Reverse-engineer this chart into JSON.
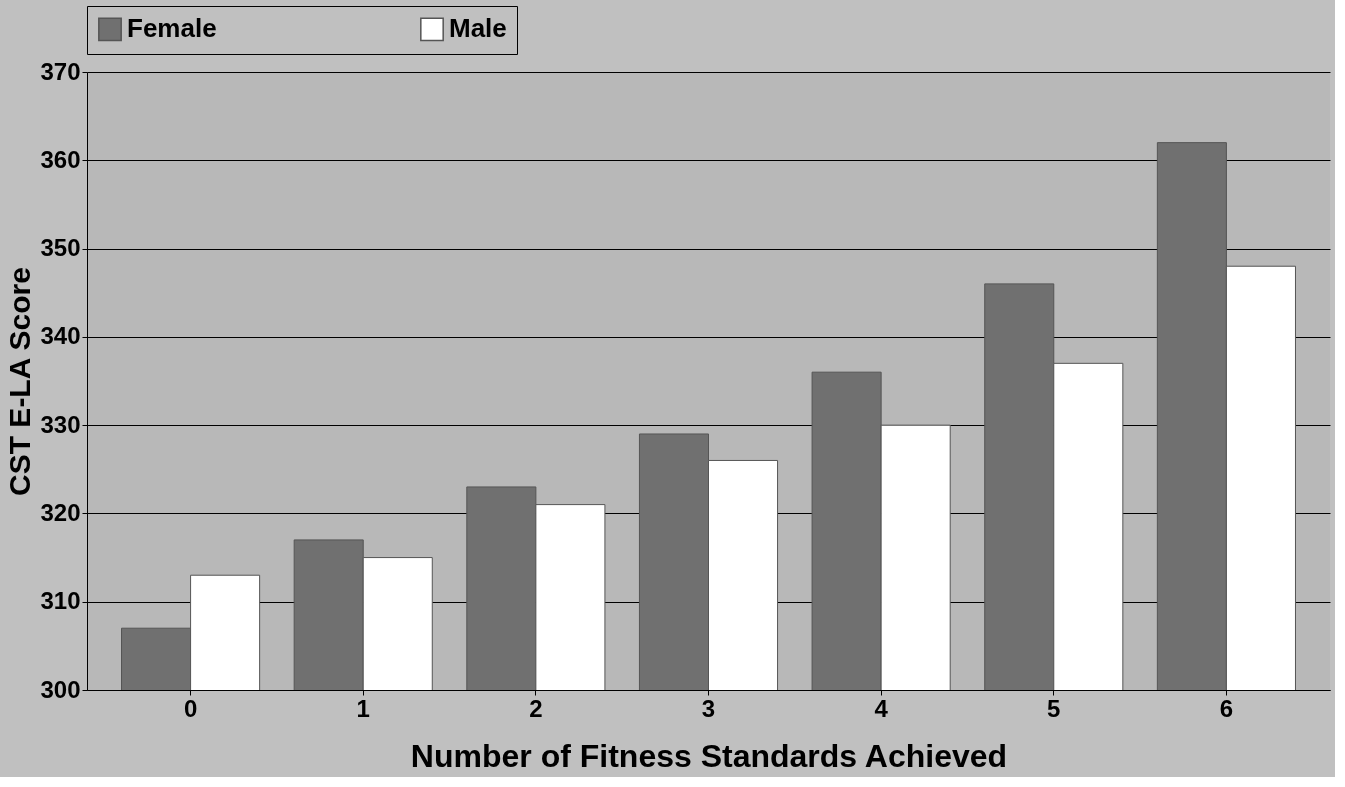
{
  "chart_data": {
    "type": "bar",
    "xlabel": "Number of Fitness Standards Achieved",
    "ylabel": "CST E-LA Score",
    "categories": [
      "0",
      "1",
      "2",
      "3",
      "4",
      "5",
      "6"
    ],
    "series": [
      {
        "name": "Female",
        "color": "#707070",
        "values": [
          307,
          317,
          323,
          329,
          336,
          346,
          362
        ]
      },
      {
        "name": "Male",
        "color": "#ffffff",
        "values": [
          313,
          315,
          321,
          326,
          330,
          337,
          348
        ]
      }
    ],
    "ylim": [
      300,
      370
    ],
    "yticks": [
      300,
      310,
      320,
      330,
      340,
      350,
      360,
      370
    ],
    "grid": "y",
    "legend": "top"
  }
}
